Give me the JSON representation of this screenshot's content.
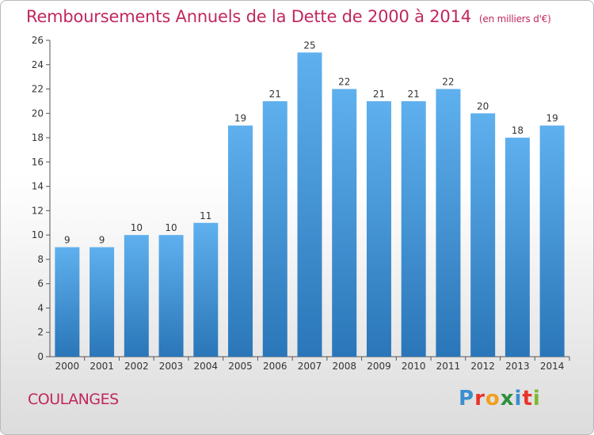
{
  "header": {
    "title": "Remboursements Annuels de la Dette de 2000 à 2014",
    "unit": "(en milliers d'€)"
  },
  "footer": {
    "town": "COULANGES",
    "brand_letters": [
      "P",
      "r",
      "o",
      "x",
      "i",
      "t",
      "i"
    ],
    "brand_colors": [
      "#3b8fcf",
      "#e9332a",
      "#f0a01e",
      "#2c8f3c",
      "#3b8fcf",
      "#e9332a",
      "#7cba2f"
    ]
  },
  "chart_data": {
    "type": "bar",
    "title": "Remboursements Annuels de la Dette de 2000 à 2014",
    "xlabel": "",
    "ylabel": "",
    "categories": [
      "2000",
      "2001",
      "2002",
      "2003",
      "2004",
      "2005",
      "2006",
      "2007",
      "2008",
      "2009",
      "2010",
      "2011",
      "2012",
      "2013",
      "2014"
    ],
    "values": [
      9,
      9,
      10,
      10,
      11,
      19,
      21,
      25,
      22,
      21,
      21,
      22,
      20,
      18,
      19
    ],
    "ylim": [
      0,
      26
    ],
    "yticks": [
      0,
      2,
      4,
      6,
      8,
      10,
      12,
      14,
      16,
      18,
      20,
      22,
      24,
      26
    ],
    "grid": false,
    "bar_color": "#3a8fd8"
  }
}
